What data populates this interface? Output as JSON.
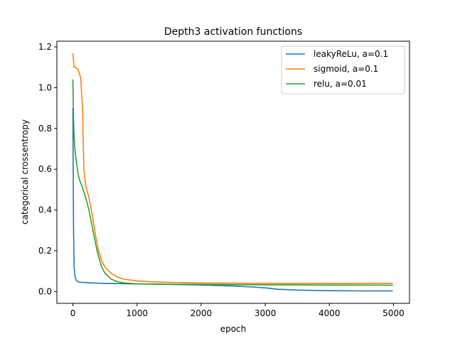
{
  "chart_data": {
    "type": "line",
    "title": "Depth3 activation functions",
    "xlabel": "epoch",
    "ylabel": "categorical crossentropy",
    "xlim": [
      -250,
      5250
    ],
    "ylim": [
      -0.058,
      1.228
    ],
    "xticks": [
      0,
      1000,
      2000,
      3000,
      4000,
      5000
    ],
    "yticks": [
      0.0,
      0.2,
      0.4,
      0.6,
      0.8,
      1.0,
      1.2
    ],
    "xtick_labels": [
      "0",
      "1000",
      "2000",
      "3000",
      "4000",
      "5000"
    ],
    "ytick_labels": [
      "0.0",
      "0.2",
      "0.4",
      "0.6",
      "0.8",
      "1.0",
      "1.2"
    ],
    "grid": false,
    "legend_position": "top-right",
    "series": [
      {
        "name": "leakyReLu, a=0.1",
        "color": "#1f77b4",
        "x": [
          0,
          10,
          20,
          30,
          50,
          80,
          120,
          200,
          300,
          500,
          1000,
          1500,
          2000,
          2500,
          2800,
          3000,
          3200,
          3500,
          4000,
          4500,
          4990
        ],
        "y": [
          0.9,
          0.32,
          0.12,
          0.08,
          0.055,
          0.048,
          0.045,
          0.044,
          0.042,
          0.04,
          0.037,
          0.035,
          0.032,
          0.027,
          0.022,
          0.018,
          0.011,
          0.007,
          0.004,
          0.003,
          0.003
        ]
      },
      {
        "name": "sigmoid, a=0.1",
        "color": "#ff7f0e",
        "x": [
          0,
          20,
          40,
          80,
          120,
          150,
          170,
          200,
          250,
          300,
          350,
          400,
          450,
          500,
          600,
          700,
          800,
          1000,
          1200,
          1500,
          2000,
          3000,
          4000,
          4990
        ],
        "y": [
          1.17,
          1.1,
          1.1,
          1.09,
          1.05,
          0.9,
          0.6,
          0.52,
          0.46,
          0.38,
          0.28,
          0.2,
          0.15,
          0.12,
          0.088,
          0.07,
          0.06,
          0.052,
          0.048,
          0.045,
          0.042,
          0.04,
          0.04,
          0.04
        ]
      },
      {
        "name": "relu, a=0.01",
        "color": "#2ca02c",
        "x": [
          0,
          10,
          20,
          30,
          40,
          60,
          80,
          100,
          150,
          200,
          250,
          300,
          350,
          400,
          450,
          500,
          600,
          700,
          800,
          1000,
          1500,
          2000,
          3000,
          4000,
          4990
        ],
        "y": [
          1.04,
          0.85,
          0.75,
          0.7,
          0.67,
          0.62,
          0.58,
          0.55,
          0.51,
          0.46,
          0.4,
          0.32,
          0.24,
          0.17,
          0.12,
          0.09,
          0.06,
          0.048,
          0.042,
          0.038,
          0.036,
          0.035,
          0.033,
          0.032,
          0.031
        ]
      }
    ]
  }
}
